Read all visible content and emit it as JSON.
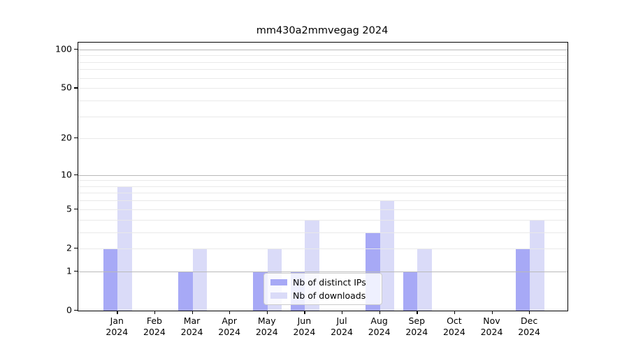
{
  "chart_data": {
    "type": "bar",
    "title": "mm430a2mmvegag 2024",
    "categories": [
      "Jan 2024",
      "Feb 2024",
      "Mar 2024",
      "Apr 2024",
      "May 2024",
      "Jun 2024",
      "Jul 2024",
      "Aug 2024",
      "Sep 2024",
      "Oct 2024",
      "Nov 2024",
      "Dec 2024"
    ],
    "series": [
      {
        "name": "Nb of distinct IPs",
        "color": "#a7a9f6",
        "values": [
          2,
          0,
          1,
          0,
          1,
          1,
          0,
          3,
          1,
          0,
          0,
          2
        ]
      },
      {
        "name": "Nb of downloads",
        "color": "#dadbf8",
        "values": [
          8,
          0,
          2,
          0,
          2,
          4,
          0,
          6,
          2,
          0,
          0,
          4
        ]
      }
    ],
    "yscale": "log10(value+1)",
    "ylim": [
      0,
      113
    ],
    "yticks": [
      100,
      50,
      20,
      10,
      5,
      2,
      1,
      0
    ],
    "grid": {
      "major": [
        1,
        10,
        100
      ],
      "minor": [
        2,
        3,
        4,
        5,
        6,
        7,
        8,
        9,
        20,
        30,
        40,
        50,
        60,
        70,
        80,
        90
      ],
      "on": true
    },
    "legend_position": "inside lower center"
  }
}
